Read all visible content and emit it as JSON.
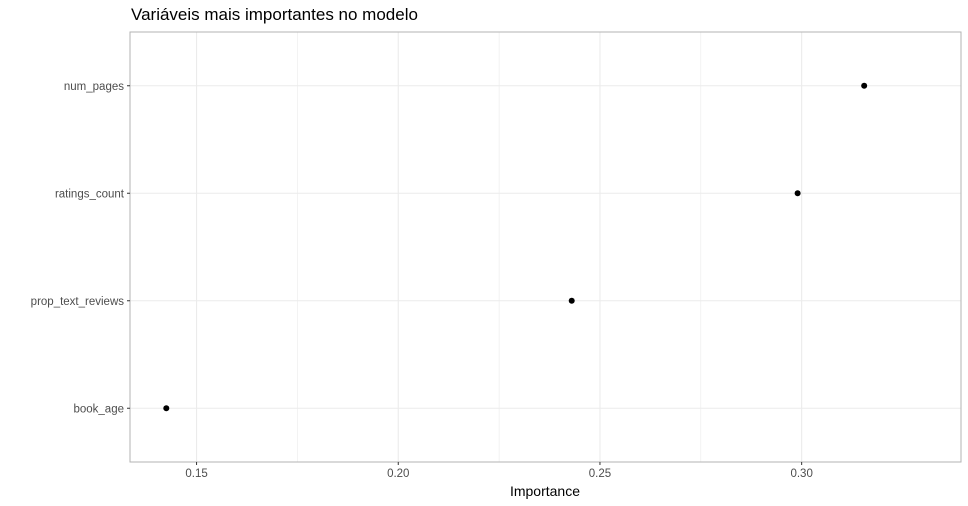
{
  "chart_data": {
    "type": "scatter",
    "title": "Variáveis mais importantes no modelo",
    "xlabel": "Importance",
    "ylabel": "",
    "categories": [
      "num_pages",
      "ratings_count",
      "prop_text_reviews",
      "book_age"
    ],
    "values": [
      0.3155,
      0.299,
      0.243,
      0.1425
    ],
    "xlim": [
      0.1335,
      0.3395
    ],
    "xticks": [
      0.15,
      0.2,
      0.25,
      0.3
    ],
    "xtick_labels": [
      "0.15",
      "0.20",
      "0.25",
      "0.30"
    ],
    "grid": true,
    "colors": {
      "point": "#000000",
      "grid": "#ebebeb",
      "panel_border": "#b3b3b3",
      "tick_text": "#4d4d4d"
    }
  }
}
